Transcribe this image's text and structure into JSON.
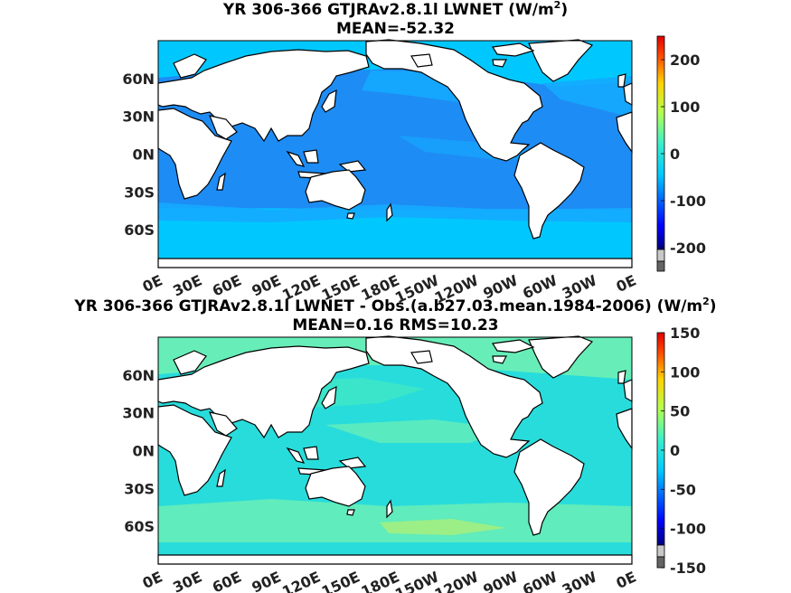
{
  "panels": [
    {
      "title_main": "YR 306-366 GTJRAv2.8.1l  LWNET (W/m",
      "title_sup": "2",
      "title_close": ")",
      "title_line2": "MEAN=-52.32",
      "colorbar": {
        "ticks": [
          "200",
          "100",
          "0",
          "-100",
          "-200"
        ],
        "range": [
          -250,
          250
        ]
      }
    },
    {
      "title_main": "YR 306-366 GTJRAv2.8.1l LWNET - Obs.(a.b27.03.mean.1984-2006) (W/m",
      "title_sup": "2",
      "title_close": ")",
      "title_line2": "MEAN=0.16 RMS=10.23",
      "colorbar": {
        "ticks": [
          "150",
          "100",
          "50",
          "0",
          "-50",
          "-100",
          "-150"
        ],
        "range": [
          -150,
          150
        ]
      }
    }
  ],
  "lat_labels": [
    "60N",
    "30N",
    "0N",
    "30S",
    "60S"
  ],
  "lon_labels": [
    "0E",
    "30E",
    "60E",
    "90E",
    "120E",
    "150E",
    "180E",
    "150W",
    "120W",
    "90W",
    "60W",
    "30W",
    "0E"
  ],
  "colors": {
    "top_ocean": "#1e8cf5",
    "top_high_lat": "#00c8ff",
    "top_mid": "#14aaff",
    "bottom_ocean": "#28dcdc",
    "bottom_light": "#6ef0b4",
    "bottom_mid": "#3ce6c8",
    "land": "#ffffff"
  }
}
